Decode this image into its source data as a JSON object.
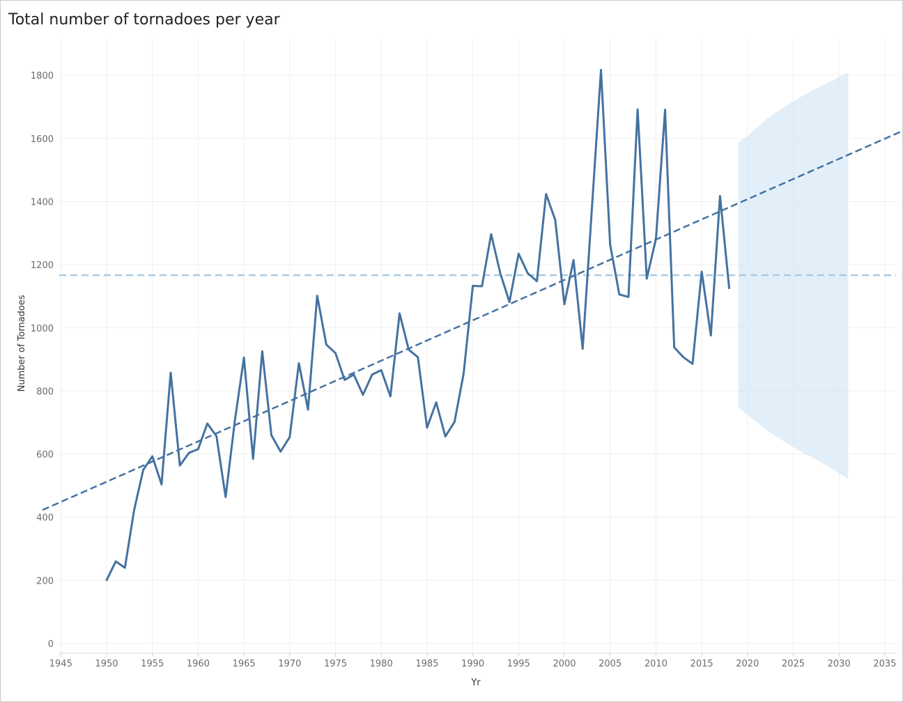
{
  "chart_data": {
    "type": "line",
    "title": "Total number of tornadoes per year",
    "xlabel": "Yr",
    "ylabel": "Number of Tornadoes",
    "xlim": [
      1943,
      2037
    ],
    "ylim": [
      0,
      1900
    ],
    "x_ticks": [
      1945,
      1950,
      1955,
      1960,
      1965,
      1970,
      1975,
      1980,
      1985,
      1990,
      1995,
      2000,
      2005,
      2010,
      2015,
      2020,
      2025,
      2030,
      2035
    ],
    "y_ticks": [
      0,
      200,
      400,
      600,
      800,
      1000,
      1200,
      1400,
      1600,
      1800
    ],
    "grid": true,
    "series": [
      {
        "color": "#4472a0",
        "x": [
          1950,
          1951,
          1952,
          1953,
          1954,
          1955,
          1956,
          1957,
          1958,
          1959,
          1960,
          1961,
          1962,
          1963,
          1964,
          1965,
          1966,
          1967,
          1968,
          1969,
          1970,
          1971,
          1972,
          1973,
          1974,
          1975,
          1976,
          1977,
          1978,
          1979,
          1980,
          1981,
          1982,
          1983,
          1984,
          1985,
          1986,
          1987,
          1988,
          1989,
          1990,
          1991,
          1992,
          1993,
          1994,
          1995,
          1996,
          1997,
          1998,
          1999,
          2000,
          2001,
          2002,
          2003,
          2004,
          2005,
          2006,
          2007,
          2008,
          2009,
          2010,
          2011,
          2012,
          2013,
          2014,
          2015,
          2016,
          2017,
          2018
        ],
        "values": [
          201,
          260,
          240,
          422,
          550,
          593,
          504,
          858,
          564,
          604,
          616,
          697,
          657,
          464,
          704,
          906,
          585,
          926,
          660,
          608,
          654,
          888,
          741,
          1102,
          947,
          920,
          835,
          852,
          788,
          852,
          866,
          783,
          1046,
          931,
          907,
          684,
          764,
          656,
          702,
          856,
          1133,
          1132,
          1297,
          1173,
          1082,
          1235,
          1173,
          1148,
          1424,
          1342,
          1075,
          1215,
          934,
          1376,
          1817,
          1264,
          1106,
          1098,
          1692,
          1156,
          1282,
          1691,
          938,
          907,
          886,
          1178,
          976,
          1418,
          1126
        ]
      }
    ],
    "trend_line": {
      "color": "#4472a0",
      "style": "dashed",
      "x": [
        1943,
        2037
      ],
      "values": [
        423,
        1625
      ]
    },
    "reference_line": {
      "color": "#a8cbe3",
      "style": "dashed",
      "value": 1167
    },
    "forecast_band": {
      "color": "#cfe4f5",
      "x": [
        2019,
        2020,
        2022,
        2024,
        2026,
        2028,
        2031
      ],
      "upper": [
        1587,
        1608,
        1660,
        1700,
        1735,
        1766,
        1810
      ],
      "lower": [
        747,
        725,
        678,
        640,
        605,
        575,
        521
      ]
    }
  }
}
